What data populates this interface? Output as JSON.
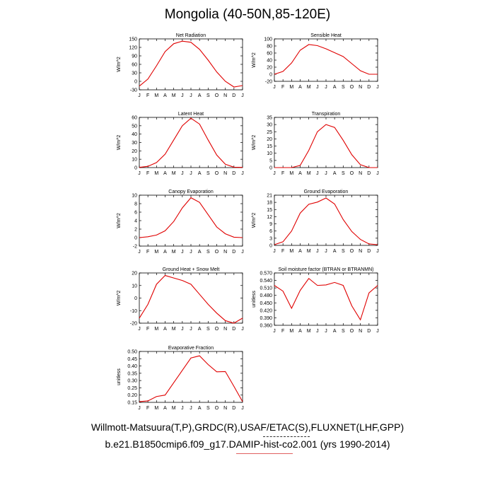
{
  "title": "Mongolia (40-50N,85-120E)",
  "footer": {
    "line1": "Willmott-Matsuura(T,P),GRDC(R),USAF/ETAC(S),FLUXNET(LHF,GPP)",
    "line2": "b.e21.B1850cmip6.f09_g17.DAMIP-hist-co2.001 (yrs 1990-2014)"
  },
  "line_color": "#e00000",
  "chart_data": [
    {
      "type": "line",
      "title": "Net Radiation",
      "ylabel": "W/m^2",
      "categories": [
        "J",
        "F",
        "M",
        "A",
        "M",
        "J",
        "J",
        "A",
        "S",
        "O",
        "N",
        "D",
        "J"
      ],
      "values": [
        -17,
        8,
        55,
        105,
        133,
        142,
        138,
        113,
        75,
        33,
        0,
        -20,
        -15
      ],
      "ylim": [
        -30,
        150
      ],
      "yticks": [
        150,
        120,
        90,
        60,
        30,
        0,
        -30
      ],
      "tick_labels": [
        "150",
        "120",
        "90",
        "60",
        "30",
        "0",
        "-30"
      ]
    },
    {
      "type": "line",
      "title": "Sensible Heat",
      "ylabel": "W/m^2",
      "categories": [
        "J",
        "F",
        "M",
        "A",
        "M",
        "J",
        "J",
        "A",
        "S",
        "O",
        "N",
        "D",
        "J"
      ],
      "values": [
        0,
        8,
        32,
        68,
        84,
        81,
        72,
        61,
        50,
        30,
        10,
        0,
        0
      ],
      "ylim": [
        -20,
        100
      ],
      "yticks": [
        100,
        80,
        60,
        40,
        20,
        0,
        -20
      ],
      "tick_labels": [
        "100",
        "80",
        "60",
        "40",
        "20",
        "0",
        "-20"
      ]
    },
    {
      "type": "line",
      "title": "Latent Heat",
      "ylabel": "W/m^2",
      "categories": [
        "J",
        "F",
        "M",
        "A",
        "M",
        "J",
        "J",
        "A",
        "S",
        "O",
        "N",
        "D",
        "J"
      ],
      "values": [
        0.3,
        1.5,
        6,
        16,
        33,
        50,
        59,
        52,
        33,
        15,
        4,
        0.5,
        0.3
      ],
      "ylim": [
        0,
        60
      ],
      "yticks": [
        60,
        50,
        40,
        30,
        20,
        10,
        0
      ],
      "tick_labels": [
        "60",
        "50",
        "40",
        "30",
        "20",
        "10",
        "0"
      ]
    },
    {
      "type": "line",
      "title": "Transpiration",
      "ylabel": "W/m^2",
      "categories": [
        "J",
        "F",
        "M",
        "A",
        "M",
        "J",
        "J",
        "A",
        "S",
        "O",
        "N",
        "D",
        "J"
      ],
      "values": [
        0,
        0,
        0,
        1.5,
        12,
        25,
        30,
        28,
        19,
        9,
        2,
        0,
        0
      ],
      "ylim": [
        0,
        35
      ],
      "yticks": [
        35,
        30,
        25,
        20,
        15,
        10,
        5,
        0
      ],
      "tick_labels": [
        "35",
        "30",
        "25",
        "20",
        "15",
        "10",
        "5",
        "0"
      ]
    },
    {
      "type": "line",
      "title": "Canopy Evaporation",
      "ylabel": "W/m^2",
      "categories": [
        "J",
        "F",
        "M",
        "A",
        "M",
        "J",
        "J",
        "A",
        "S",
        "O",
        "N",
        "D",
        "J"
      ],
      "values": [
        0,
        0.2,
        0.6,
        1.6,
        3.8,
        7,
        9.4,
        8.3,
        5.4,
        2.5,
        0.9,
        0.1,
        0
      ],
      "ylim": [
        -2,
        10
      ],
      "yticks": [
        10,
        8,
        6,
        4,
        2,
        0,
        -2
      ],
      "tick_labels": [
        "10",
        "8",
        "6",
        "4",
        "2",
        "0",
        "-2"
      ]
    },
    {
      "type": "line",
      "title": "Ground Evaporation",
      "ylabel": "W/m^2",
      "categories": [
        "J",
        "F",
        "M",
        "A",
        "M",
        "J",
        "J",
        "A",
        "S",
        "O",
        "N",
        "D",
        "J"
      ],
      "values": [
        0.3,
        1.5,
        6,
        13.5,
        17.2,
        18.1,
        19.8,
        17.3,
        10.8,
        5.8,
        2.5,
        0.6,
        0.3
      ],
      "ylim": [
        0,
        21
      ],
      "yticks": [
        21,
        18,
        15,
        12,
        9,
        6,
        3,
        0
      ],
      "tick_labels": [
        "21",
        "18",
        "15",
        "12",
        "9",
        "6",
        "3",
        "0"
      ]
    },
    {
      "type": "line",
      "title": "Ground Heat + Snow Melt",
      "ylabel": "W/m^2",
      "categories": [
        "J",
        "F",
        "M",
        "A",
        "M",
        "J",
        "J",
        "A",
        "S",
        "O",
        "N",
        "D",
        "J"
      ],
      "values": [
        -16,
        -5,
        11,
        18,
        16,
        14,
        11,
        3,
        -5,
        -12,
        -18,
        -20,
        -16
      ],
      "ylim": [
        -20,
        20
      ],
      "yticks": [
        20,
        10,
        0,
        -10,
        -20
      ],
      "tick_labels": [
        "20",
        "10",
        "0",
        "-10",
        "-20"
      ]
    },
    {
      "type": "line",
      "title": "Soil moisture factor (BTRAN or BTRANMN)",
      "ylabel": "unitless",
      "categories": [
        "J",
        "F",
        "M",
        "A",
        "M",
        "J",
        "J",
        "A",
        "S",
        "O",
        "N",
        "D",
        "J"
      ],
      "values": [
        0.52,
        0.497,
        0.428,
        0.5,
        0.548,
        0.52,
        0.522,
        0.532,
        0.52,
        0.438,
        0.382,
        0.49,
        0.52
      ],
      "ylim": [
        0.36,
        0.57
      ],
      "yticks": [
        0.57,
        0.54,
        0.51,
        0.48,
        0.45,
        0.42,
        0.39,
        0.36
      ],
      "tick_labels": [
        "0.570",
        "0.540",
        "0.510",
        "0.480",
        "0.450",
        "0.420",
        "0.390",
        "0.360"
      ]
    },
    {
      "type": "line",
      "title": "Evaporative Fraction",
      "ylabel": "unitless",
      "categories": [
        "J",
        "F",
        "M",
        "A",
        "M",
        "J",
        "J",
        "A",
        "S",
        "O",
        "N",
        "D",
        "J"
      ],
      "values": [
        0.155,
        0.16,
        0.19,
        0.2,
        0.285,
        0.37,
        0.455,
        0.47,
        0.41,
        0.36,
        0.362,
        0.26,
        0.155
      ],
      "ylim": [
        0.15,
        0.5
      ],
      "yticks": [
        0.5,
        0.45,
        0.4,
        0.35,
        0.3,
        0.25,
        0.2,
        0.15
      ],
      "tick_labels": [
        "0.50",
        "0.45",
        "0.40",
        "0.35",
        "0.30",
        "0.25",
        "0.20",
        "0.15"
      ]
    }
  ]
}
